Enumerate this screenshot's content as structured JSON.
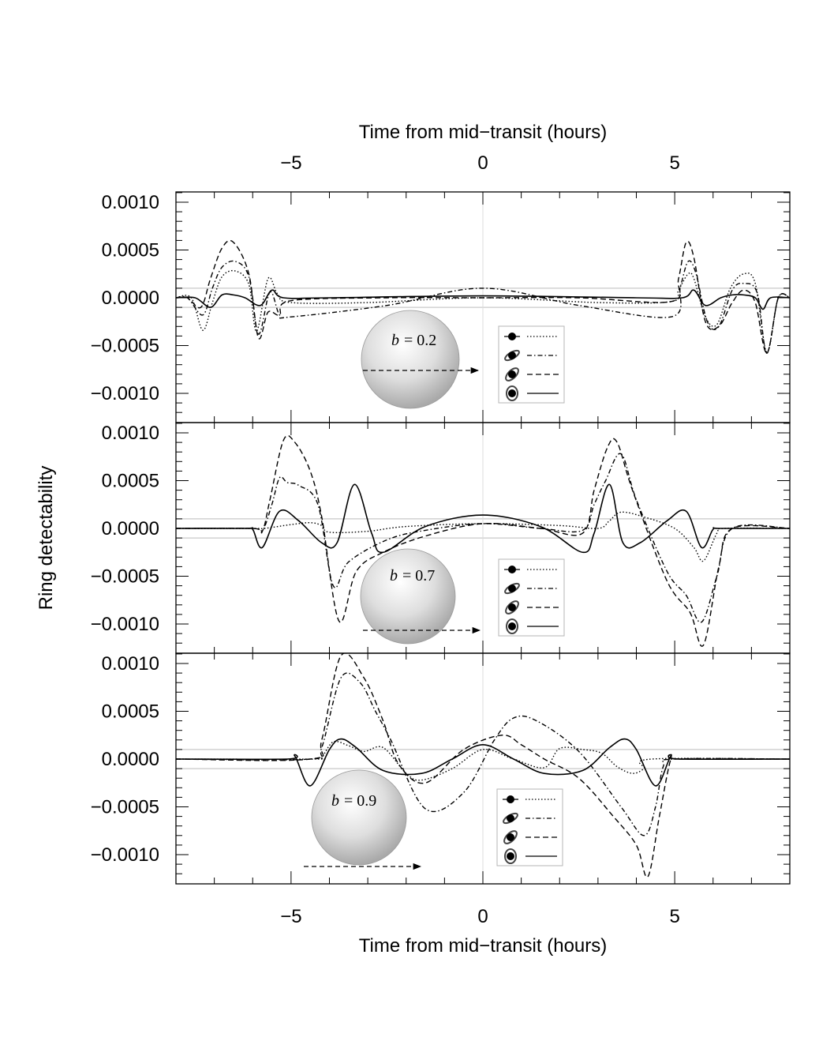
{
  "chart_data": {
    "type": "line",
    "title": "",
    "xlabel_top": "Time from mid−transit (hours)",
    "xlabel_bottom": "Time from mid−transit (hours)",
    "ylabel": "Ring detectability",
    "xlim": [
      -8,
      8
    ],
    "ylim": [
      -0.00122,
      0.00122
    ],
    "x_ticks": [
      -5,
      0,
      5
    ],
    "x_tick_labels": [
      "−5",
      "0",
      "5"
    ],
    "y_ticks": [
      0.001,
      0.0005,
      0.0,
      -0.0005,
      -0.001
    ],
    "y_tick_labels": [
      "0.0010",
      "0.0005",
      "0.0000",
      "−0.0005",
      "−0.0010"
    ],
    "reference_band": [
      -0.0001,
      0.0001
    ],
    "line_styles": [
      "dotted",
      "dash-dot",
      "dashed",
      "solid"
    ],
    "legend_icons": [
      "planet-ring-edge-on-icon",
      "planet-ring-tilted-icon",
      "planet-ring-inclined-icon",
      "planet-ring-face-on-icon"
    ],
    "panels": [
      {
        "b_var": "b",
        "b_value": "= 0.2",
        "series": [
          {
            "style": "dotted",
            "x": [
              -8,
              -7.6,
              -7.3,
              -7.05,
              -6.8,
              -6.45,
              -6.1,
              -5.9,
              -5.6,
              -5.35,
              -5,
              -3,
              0,
              3,
              4.9,
              5.1,
              5.35,
              5.5,
              5.8,
              6.1,
              6.45,
              6.8,
              7.1,
              7.4,
              7.7,
              8
            ],
            "y": [
              0,
              0,
              -0.00034,
              -5e-05,
              0.00022,
              0.00028,
              0.00014,
              -0.00035,
              0.0002,
              4e-05,
              -5e-05,
              -5e-05,
              0.0,
              -5e-05,
              -4e-05,
              8e-05,
              0.00025,
              0.0002,
              -0.0002,
              -0.00028,
              0.0001,
              0.00025,
              0.00015,
              -0.00057,
              0.0,
              0.0
            ]
          },
          {
            "style": "dash-dot",
            "x": [
              -8,
              -7.7,
              -7.3,
              -7.05,
              -6.8,
              -6.45,
              -6.1,
              -5.85,
              -5.55,
              -5.3,
              -5,
              -2.5,
              0,
              2.5,
              4.9,
              5.15,
              5.35,
              5.55,
              5.85,
              6.15,
              6.5,
              6.8,
              7.15,
              7.4,
              7.7,
              8
            ],
            "y": [
              0,
              0,
              -0.00018,
              0.0001,
              0.00032,
              0.00038,
              0.00022,
              -0.00038,
              6e-05,
              -0.00018,
              -0.0002,
              -8e-05,
              0.0001,
              -8e-05,
              -0.0002,
              0.00012,
              0.00038,
              0.00026,
              -0.00025,
              -0.0003,
              8e-05,
              0.00015,
              5e-05,
              -0.00058,
              0.0,
              0.0
            ]
          },
          {
            "style": "dashed",
            "x": [
              -8,
              -7.7,
              -7.35,
              -7.1,
              -6.8,
              -6.5,
              -6.1,
              -5.85,
              -5.6,
              -5.3,
              -5,
              -2.5,
              0,
              2.5,
              4.9,
              5.1,
              5.3,
              5.5,
              5.8,
              6.15,
              6.5,
              6.8,
              7.1,
              7.4,
              7.7,
              8
            ],
            "y": [
              0,
              0,
              -0.0001,
              0.0002,
              0.00052,
              0.00058,
              0.00025,
              -0.00042,
              -0.00015,
              -0.00018,
              -3e-05,
              0.0,
              0.0,
              0.0,
              -4e-05,
              0.0002,
              0.00058,
              0.00042,
              -0.00025,
              -0.0003,
              -5e-05,
              8e-05,
              -5e-05,
              -0.00058,
              0.0,
              0.0
            ]
          },
          {
            "style": "solid",
            "x": [
              -8,
              -7.5,
              -7.1,
              -6.8,
              -6.5,
              -6.2,
              -5.8,
              -5.5,
              -5.2,
              -4,
              0,
              4,
              5.2,
              5.5,
              5.8,
              6.2,
              6.5,
              6.8,
              7.1,
              7.3,
              7.5,
              8
            ],
            "y": [
              0,
              0,
              -0.0001,
              3e-05,
              3e-05,
              0.0,
              -8e-05,
              8e-05,
              0.0,
              0.0,
              2e-05,
              0.0,
              0.0,
              8e-05,
              -8e-05,
              0.0,
              3e-05,
              3e-05,
              0.0,
              -0.00012,
              0.0,
              0.0
            ]
          }
        ]
      },
      {
        "b_var": "b",
        "b_value": "= 0.7",
        "series": [
          {
            "style": "dotted",
            "x": [
              -8,
              -6,
              -5.7,
              -5,
              -4.5,
              -4.2,
              -4.0,
              -3.0,
              -2,
              0,
              2,
              3.0,
              3.3,
              3.6,
              4.2,
              5.0,
              5.5,
              5.75,
              6.1,
              6.3,
              8
            ],
            "y": [
              0,
              0,
              0.0,
              4e-05,
              6e-05,
              3e-05,
              -4e-05,
              -3e-05,
              2e-05,
              5e-05,
              3e-05,
              0.0,
              8e-05,
              0.00017,
              0.00012,
              0.0,
              -0.0002,
              -0.00034,
              -5e-05,
              0.0,
              0.0
            ]
          },
          {
            "style": "dash-dot",
            "x": [
              -8,
              -6,
              -5.75,
              -5.5,
              -5.3,
              -5.1,
              -4.8,
              -4.3,
              -3.9,
              -3.5,
              -2.5,
              -1.5,
              0,
              1.5,
              2.6,
              2.9,
              3.2,
              3.6,
              4.0,
              4.8,
              5.3,
              5.7,
              6.1,
              6.5,
              8
            ],
            "y": [
              0,
              0,
              -3e-05,
              0.00025,
              0.00053,
              0.00048,
              0.00045,
              0.00025,
              -0.0006,
              -0.00035,
              -0.00012,
              -2e-05,
              5e-05,
              0.0,
              -2e-05,
              0.00025,
              0.0005,
              0.00078,
              0.0003,
              -0.00045,
              -0.0007,
              -0.00098,
              -0.0005,
              0.0,
              0.0
            ]
          },
          {
            "style": "dashed",
            "x": [
              -8,
              -6,
              -5.75,
              -5.55,
              -5.2,
              -4.9,
              -4.5,
              -4.2,
              -3.75,
              -3.3,
              -2.6,
              -1.5,
              0,
              1.5,
              2.6,
              2.9,
              3.25,
              3.5,
              3.9,
              4.8,
              5.4,
              5.75,
              6.15,
              6.5,
              8
            ],
            "y": [
              0,
              0,
              -3e-05,
              0.0003,
              0.00092,
              0.0009,
              0.0006,
              0.00012,
              -0.00097,
              -0.00045,
              -0.00025,
              -8e-05,
              5e-05,
              0.0,
              -5e-05,
              0.0004,
              0.00085,
              0.0009,
              0.0004,
              -0.00055,
              -0.00088,
              -0.00122,
              -0.0004,
              0.0,
              0.0
            ]
          },
          {
            "style": "solid",
            "x": [
              -8,
              -6.2,
              -6.0,
              -5.75,
              -5.3,
              -4.8,
              -4.2,
              -3.8,
              -3.35,
              -2.9,
              -2.6,
              -1.5,
              0,
              1.5,
              2.6,
              2.9,
              3.3,
              3.65,
              4.1,
              4.8,
              5.3,
              5.7,
              6.0,
              6.2,
              8
            ],
            "y": [
              0,
              0,
              -1e-05,
              -0.0002,
              0.00018,
              8e-05,
              -0.00015,
              -0.00015,
              0.00046,
              -5e-05,
              -0.00025,
              2e-05,
              0.00014,
              2e-05,
              -0.00025,
              -5e-05,
              0.00046,
              -0.00015,
              -0.00015,
              8e-05,
              0.00018,
              -0.0002,
              -1e-05,
              0.0,
              0.0
            ]
          }
        ]
      },
      {
        "b_var": "b",
        "b_value": "= 0.9",
        "series": [
          {
            "style": "dotted",
            "x": [
              -8,
              -4.4,
              -4.2,
              -3.9,
              -3.5,
              -3.1,
              -2.6,
              -2.0,
              -1.6,
              -0.8,
              0,
              0.8,
              1.6,
              2.0,
              2.6,
              3.1,
              3.5,
              3.9,
              4.2,
              4.4,
              8
            ],
            "y": [
              0,
              0,
              2e-05,
              0.00018,
              0.00014,
              8e-05,
              0.00012,
              -0.00015,
              -0.00022,
              -0.0001,
              0.0001,
              0.0,
              -9e-05,
              0.00011,
              0.0001,
              6e-05,
              -8e-05,
              -0.00015,
              -0.0001,
              0.0,
              0.0
            ]
          },
          {
            "style": "dash-dot",
            "x": [
              -8,
              -4.5,
              -4.2,
              -3.7,
              -3.2,
              -2.8,
              -2.4,
              -1.5,
              -0.5,
              0.3,
              0.8,
              1.4,
              2.5,
              3.6,
              4.2,
              4.5,
              4.7,
              5.0,
              8
            ],
            "y": [
              0,
              0,
              0.00012,
              0.00085,
              0.0008,
              0.0005,
              0.0002,
              -0.00052,
              -0.00035,
              0.0002,
              0.00043,
              0.0004,
              8e-05,
              -0.0005,
              -0.0008,
              -0.0005,
              -8e-05,
              0.0,
              0.0
            ]
          },
          {
            "style": "dashed",
            "x": [
              -8,
              -4.5,
              -4.2,
              -3.7,
              -3.1,
              -2.6,
              -2.2,
              -1.5,
              -0.5,
              0.5,
              1.0,
              1.6,
              2.5,
              3.4,
              4.0,
              4.3,
              4.6,
              4.9,
              5.1,
              8
            ],
            "y": [
              0,
              0,
              0.0002,
              0.00108,
              0.00085,
              0.0004,
              -5e-05,
              -0.00025,
              0.0001,
              0.00025,
              0.00015,
              0.0,
              -0.0002,
              -0.0006,
              -0.0009,
              -0.00123,
              -0.0006,
              0.0,
              0.0,
              0.0
            ]
          },
          {
            "style": "solid",
            "x": [
              -8,
              -5.1,
              -4.9,
              -4.5,
              -4.0,
              -3.7,
              -3.3,
              -2.6,
              -1.6,
              -0.8,
              0,
              0.8,
              1.6,
              2.6,
              3.3,
              3.7,
              4.0,
              4.5,
              4.9,
              5.1,
              8
            ],
            "y": [
              0,
              0,
              3e-05,
              -0.00028,
              0.0001,
              0.00021,
              0.00012,
              -0.00012,
              -0.00015,
              0.0,
              0.00015,
              0.0,
              -0.00015,
              -0.00012,
              0.00012,
              0.00021,
              0.0001,
              -0.00028,
              3e-05,
              0.0,
              0.0
            ]
          }
        ]
      }
    ]
  }
}
